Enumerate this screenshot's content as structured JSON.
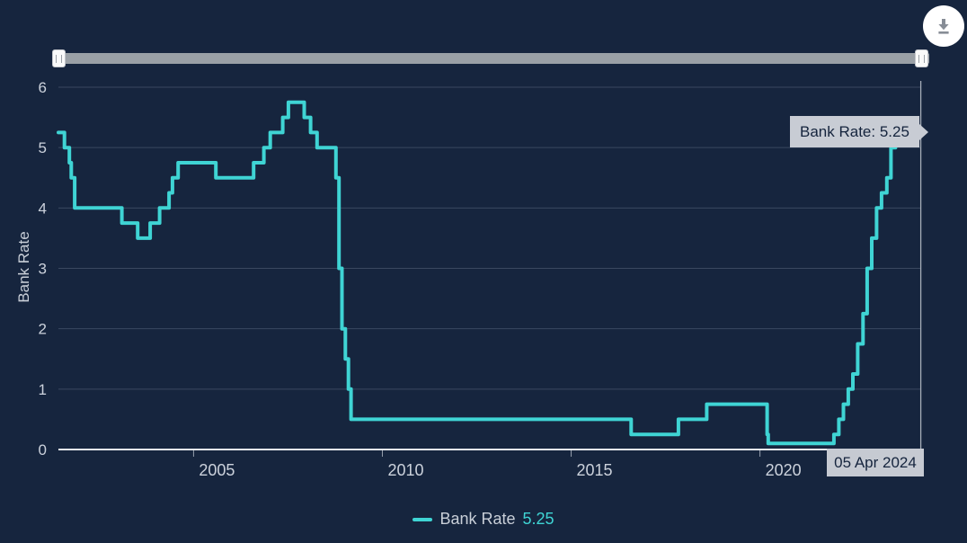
{
  "app": {
    "name": "Bank Rate history chart"
  },
  "colors": {
    "background": "#16253e",
    "line": "#3fd4d4",
    "grid": "#3a4860",
    "axis": "#e8ebef",
    "tick": "#97a0ae",
    "text": "#ccd2dc",
    "crosshair": "#a7aeb9",
    "tooltip_bg": "#c8ccd4",
    "tooltip_text": "#15243d",
    "slider_track": "#9aa0a6",
    "slider_handle": "#fafafa",
    "download_icon": "#878d96"
  },
  "tooltip": {
    "text": "Bank Rate: 5.25"
  },
  "crosshair": {
    "date_label": "05 Apr 2024"
  },
  "legend": {
    "label": "Bank Rate",
    "value": "5.25"
  },
  "chart_data": {
    "type": "line",
    "step": true,
    "title": "",
    "xlabel": "",
    "ylabel": "Bank Rate",
    "ylim": [
      0,
      6
    ],
    "xlim": [
      2001.42,
      2024.27
    ],
    "grid": true,
    "legend_position": "bottom",
    "yticks": [
      {
        "value": 0,
        "label": "0"
      },
      {
        "value": 1,
        "label": "1"
      },
      {
        "value": 2,
        "label": "2"
      },
      {
        "value": 3,
        "label": "3"
      },
      {
        "value": 4,
        "label": "4"
      },
      {
        "value": 5,
        "label": "5"
      },
      {
        "value": 6,
        "label": "6"
      }
    ],
    "xticks": [
      {
        "value": 2005,
        "label": "2005"
      },
      {
        "value": 2010,
        "label": "2010"
      },
      {
        "value": 2015,
        "label": "2015"
      },
      {
        "value": 2020,
        "label": "2020"
      }
    ],
    "series": [
      {
        "name": "Bank Rate",
        "color": "#3fd4d4",
        "points": [
          [
            2001.42,
            5.25
          ],
          [
            2001.58,
            5.0
          ],
          [
            2001.71,
            4.75
          ],
          [
            2001.76,
            4.5
          ],
          [
            2001.85,
            4.0
          ],
          [
            2003.1,
            3.75
          ],
          [
            2003.52,
            3.5
          ],
          [
            2003.85,
            3.75
          ],
          [
            2004.1,
            4.0
          ],
          [
            2004.35,
            4.25
          ],
          [
            2004.44,
            4.5
          ],
          [
            2004.59,
            4.75
          ],
          [
            2005.59,
            4.5
          ],
          [
            2006.59,
            4.75
          ],
          [
            2006.86,
            5.0
          ],
          [
            2007.03,
            5.25
          ],
          [
            2007.36,
            5.5
          ],
          [
            2007.51,
            5.75
          ],
          [
            2007.93,
            5.5
          ],
          [
            2008.1,
            5.25
          ],
          [
            2008.27,
            5.0
          ],
          [
            2008.77,
            4.5
          ],
          [
            2008.85,
            3.0
          ],
          [
            2008.93,
            2.0
          ],
          [
            2009.02,
            1.5
          ],
          [
            2009.1,
            1.0
          ],
          [
            2009.17,
            0.5
          ],
          [
            2016.59,
            0.25
          ],
          [
            2017.84,
            0.5
          ],
          [
            2018.59,
            0.75
          ],
          [
            2020.19,
            0.25
          ],
          [
            2020.22,
            0.1
          ],
          [
            2021.96,
            0.25
          ],
          [
            2022.09,
            0.5
          ],
          [
            2022.21,
            0.75
          ],
          [
            2022.34,
            1.0
          ],
          [
            2022.46,
            1.25
          ],
          [
            2022.59,
            1.75
          ],
          [
            2022.73,
            2.25
          ],
          [
            2022.84,
            3.0
          ],
          [
            2022.96,
            3.5
          ],
          [
            2023.09,
            4.0
          ],
          [
            2023.22,
            4.25
          ],
          [
            2023.36,
            4.5
          ],
          [
            2023.47,
            5.0
          ],
          [
            2023.59,
            5.25
          ],
          [
            2024.26,
            5.25
          ]
        ]
      }
    ],
    "last_point": {
      "x": 2024.26,
      "y": 5.25,
      "date_label": "05 Apr 2024",
      "value_label": "5.25"
    }
  }
}
